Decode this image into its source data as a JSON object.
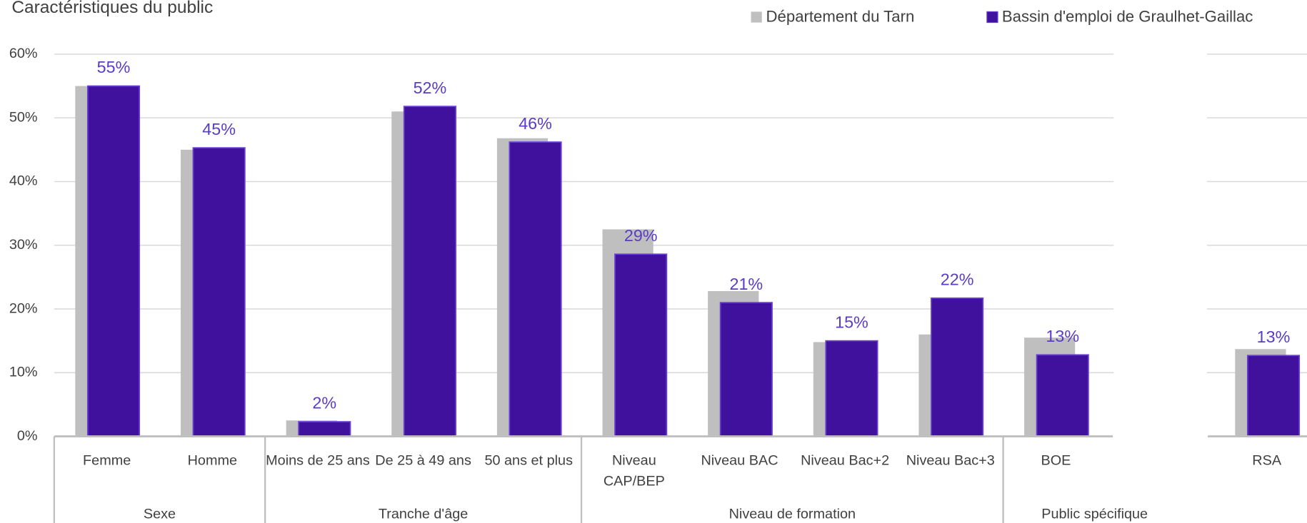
{
  "chart_data": {
    "type": "bar",
    "title": "Caractéristiques du public",
    "categories": [
      "Femme",
      "Homme",
      "Moins de 25 ans",
      "De 25 à 49 ans",
      "50 ans et plus",
      "Niveau\nCAP/BEP",
      "Niveau BAC",
      "Niveau Bac+2",
      "Niveau Bac+3",
      "BOE",
      null,
      "RSA"
    ],
    "groups": [
      {
        "label": "Sexe",
        "categories": [
          "Femme",
          "Homme"
        ]
      },
      {
        "label": "Tranche d'âge",
        "categories": [
          "Moins de 25 ans",
          "De 25 à 49 ans",
          "50 ans et plus"
        ]
      },
      {
        "label": "Niveau de formation",
        "categories": [
          "Niveau\nCAP/BEP",
          "Niveau BAC",
          "Niveau Bac+2",
          "Niveau Bac+3"
        ]
      },
      {
        "label": "Public spécifique",
        "categories": [
          "BOE",
          null,
          "RSA"
        ]
      }
    ],
    "series": [
      {
        "name": "Département du Tarn",
        "color": "#bfbfbf",
        "values": [
          55,
          45,
          2.5,
          51,
          46.8,
          32.5,
          22.8,
          14.8,
          16,
          15.5,
          null,
          13.7
        ]
      },
      {
        "name": "Bassin d'emploi de Graulhet-Gaillac",
        "color": "#3f119c",
        "values": [
          55,
          45.3,
          2.3,
          51.8,
          46.2,
          28.6,
          21,
          15,
          21.7,
          12.8,
          null,
          12.7
        ],
        "value_labels": [
          "55%",
          "45%",
          "2%",
          "52%",
          "46%",
          "29%",
          "21%",
          "15%",
          "22%",
          "13%",
          null,
          "13%"
        ]
      }
    ],
    "ylim": [
      0,
      60
    ],
    "yticks": [
      {
        "value": 0,
        "label": "0%"
      },
      {
        "value": 10,
        "label": "10%"
      },
      {
        "value": 20,
        "label": "20%"
      },
      {
        "value": 30,
        "label": "30%"
      },
      {
        "value": 40,
        "label": "40%"
      },
      {
        "value": 50,
        "label": "50%"
      },
      {
        "value": 60,
        "label": "60%"
      }
    ],
    "grid": true
  }
}
